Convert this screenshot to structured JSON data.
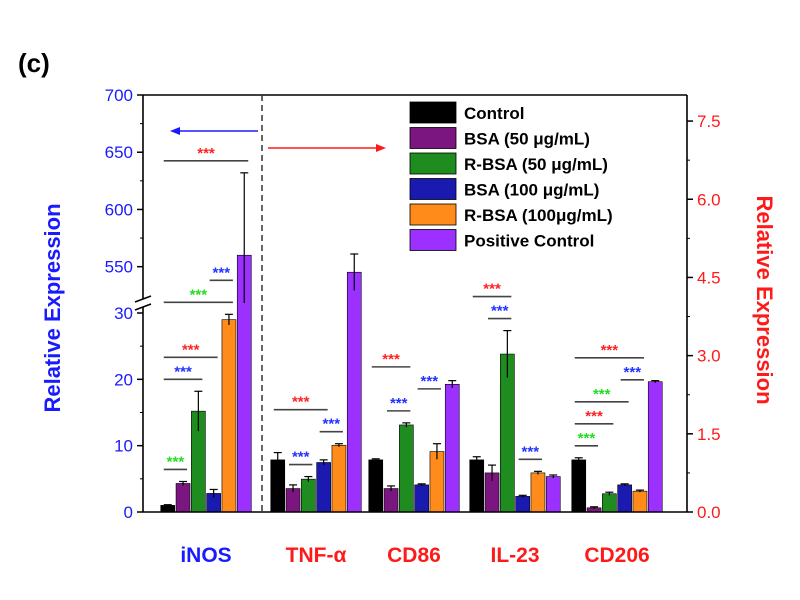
{
  "panel_label": "(c)",
  "colors": {
    "left_axis": "#1a1aff",
    "right_axis": "#ff1a1a",
    "sig_green": "#22dd22",
    "sig_red": "#ff2222",
    "sig_blue": "#2233ff"
  },
  "chart_data": {
    "type": "bar",
    "categories": [
      "iNOS",
      "TNF-α",
      "CD86",
      "IL-23",
      "CD206"
    ],
    "category_axis": [
      "left",
      "right",
      "right",
      "right",
      "right"
    ],
    "category_label_colors": [
      "#1a1aff",
      "#ff1a1a",
      "#ff1a1a",
      "#ff1a1a",
      "#ff1a1a"
    ],
    "series": [
      {
        "name": "Control",
        "color": "#000000",
        "values": [
          1.0,
          1.0,
          1.0,
          1.0,
          1.0
        ],
        "errors": [
          0.1,
          0.14,
          0.02,
          0.06,
          0.04
        ]
      },
      {
        "name": "BSA (50 μg/mL)",
        "color": "#7b1580",
        "values": [
          4.3,
          0.45,
          0.45,
          0.75,
          0.08
        ],
        "errors": [
          0.3,
          0.07,
          0.05,
          0.15,
          0.02
        ]
      },
      {
        "name": "R-BSA (50 μg/mL)",
        "color": "#1e8c1e",
        "values": [
          15.2,
          0.63,
          1.67,
          3.03,
          0.35
        ],
        "errors": [
          3.0,
          0.05,
          0.04,
          0.45,
          0.03
        ]
      },
      {
        "name": "BSA (100 μg/mL)",
        "color": "#1a1ab0",
        "values": [
          2.8,
          0.95,
          0.52,
          0.3,
          0.52
        ],
        "errors": [
          0.6,
          0.05,
          0.02,
          0.02,
          0.02
        ]
      },
      {
        "name": "R-BSA (100μg/mL)",
        "color": "#ff8c1a",
        "values": [
          29.0,
          1.28,
          1.16,
          0.75,
          0.4
        ],
        "errors": [
          0.8,
          0.03,
          0.15,
          0.03,
          0.02
        ]
      },
      {
        "name": "Positive Control",
        "color": "#9b30ff",
        "values": [
          560,
          4.6,
          2.45,
          0.68,
          2.5
        ],
        "errors": [
          72,
          0.35,
          0.07,
          0.03,
          0.02
        ]
      }
    ],
    "left_axis": {
      "label": "Relative Expression",
      "lower": {
        "range": [
          0,
          30
        ],
        "ticks": [
          "0",
          "10",
          "20",
          "30"
        ]
      },
      "upper": {
        "range": [
          527,
          700
        ],
        "ticks": [
          "550",
          "600",
          "650",
          "700"
        ]
      },
      "break": true
    },
    "right_axis": {
      "label": "Relative Expression",
      "range": [
        0,
        8.0
      ],
      "ticks": [
        "0.0",
        "1.5",
        "3.0",
        "4.5",
        "6.0",
        "7.5"
      ]
    },
    "legend_position": "top-right",
    "grid": false,
    "annotations": {
      "significance_label": "***",
      "left_arrow": "left axis",
      "right_arrow": "right axis",
      "significance_marks": [
        {
          "category": 0,
          "from": 1,
          "to": 2,
          "color": "green"
        },
        {
          "category": 0,
          "from": 1,
          "to": 3,
          "color": "blue"
        },
        {
          "category": 0,
          "from": 1,
          "to": 4,
          "color": "red"
        },
        {
          "category": 0,
          "from": 1,
          "to": 5,
          "color": "green"
        },
        {
          "category": 0,
          "from": 4,
          "to": 5,
          "color": "blue"
        },
        {
          "category": 0,
          "from": 1,
          "to": 6,
          "color": "red"
        },
        {
          "category": 1,
          "from": 2,
          "to": 3,
          "color": "blue"
        },
        {
          "category": 1,
          "from": 4,
          "to": 5,
          "color": "blue"
        },
        {
          "category": 1,
          "from": 1,
          "to": 4,
          "color": "red"
        },
        {
          "category": 2,
          "from": 2,
          "to": 3,
          "color": "blue"
        },
        {
          "category": 2,
          "from": 4,
          "to": 5,
          "color": "blue"
        },
        {
          "category": 2,
          "from": 1,
          "to": 3,
          "color": "red"
        },
        {
          "category": 3,
          "from": 4,
          "to": 5,
          "color": "blue"
        },
        {
          "category": 3,
          "from": 2,
          "to": 3,
          "color": "blue"
        },
        {
          "category": 3,
          "from": 1,
          "to": 3,
          "color": "red"
        },
        {
          "category": 4,
          "from": 1,
          "to": 2,
          "color": "green"
        },
        {
          "category": 4,
          "from": 1,
          "to": 3,
          "color": "red"
        },
        {
          "category": 4,
          "from": 1,
          "to": 4,
          "color": "green"
        },
        {
          "category": 4,
          "from": 4,
          "to": 5,
          "color": "blue"
        },
        {
          "category": 4,
          "from": 1,
          "to": 5,
          "color": "red"
        }
      ]
    }
  }
}
